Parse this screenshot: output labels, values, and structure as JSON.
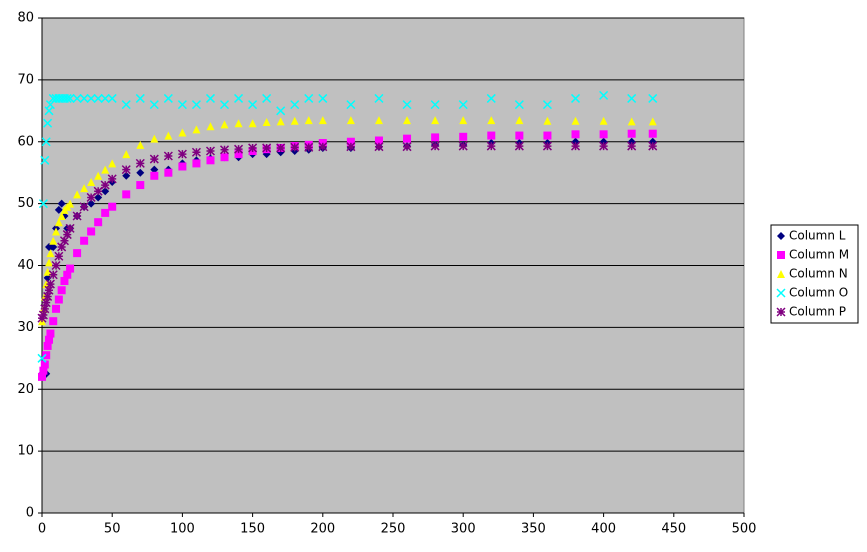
{
  "chart_data": {
    "type": "scatter",
    "x": [
      0,
      1,
      2,
      3,
      4,
      5,
      6,
      8,
      10,
      12,
      14,
      16,
      18,
      20,
      25,
      30,
      35,
      40,
      45,
      50,
      60,
      70,
      80,
      90,
      100,
      110,
      120,
      130,
      140,
      150,
      160,
      170,
      180,
      190,
      200,
      220,
      240,
      260,
      280,
      300,
      320,
      340,
      360,
      380,
      400,
      420,
      435
    ],
    "series": [
      {
        "name": "Column L",
        "color": "#000080",
        "marker": "diamond",
        "values": [
          22.5,
          22.5,
          22.5,
          22.5,
          38,
          43,
          43,
          43,
          46,
          49,
          50,
          48,
          46,
          46,
          48,
          49.5,
          50,
          51,
          52,
          53.5,
          54.5,
          55,
          55.5,
          55.5,
          56.5,
          57,
          57.3,
          57.5,
          57.5,
          58,
          58,
          58.3,
          58.5,
          58.7,
          59,
          59,
          59.2,
          59.3,
          59.5,
          59.5,
          59.8,
          59.8,
          59.8,
          60,
          60,
          60,
          60
        ]
      },
      {
        "name": "Column M",
        "color": "#ff00ff",
        "marker": "square",
        "values": [
          22,
          23,
          24,
          25.5,
          27,
          28,
          29,
          31,
          33,
          34.5,
          36,
          37.5,
          38.5,
          39.5,
          42,
          44,
          45.5,
          47,
          48.5,
          49.5,
          51.5,
          53,
          54.5,
          55,
          56,
          56.5,
          57,
          57.5,
          58,
          58.5,
          58.8,
          59,
          59.3,
          59.5,
          59.8,
          60,
          60.2,
          60.5,
          60.7,
          60.8,
          61,
          61,
          61,
          61.2,
          61.2,
          61.3,
          61.3
        ]
      },
      {
        "name": "Column N",
        "color": "#ffff00",
        "marker": "triangle",
        "values": [
          31,
          33,
          35,
          37,
          39,
          40.5,
          42,
          44,
          45.5,
          47,
          48,
          49,
          49.5,
          50,
          51.5,
          52.5,
          53.5,
          54.5,
          55.5,
          56.5,
          58,
          59.5,
          60.5,
          61,
          61.5,
          62,
          62.5,
          62.8,
          63,
          63,
          63.2,
          63.3,
          63.4,
          63.5,
          63.5,
          63.5,
          63.5,
          63.5,
          63.5,
          63.5,
          63.5,
          63.5,
          63.4,
          63.4,
          63.4,
          63.3,
          63.3
        ]
      },
      {
        "name": "Column O",
        "color": "#00ffff",
        "marker": "x",
        "values": [
          25,
          50,
          57,
          60,
          63,
          65,
          66,
          67,
          67,
          67,
          67,
          67,
          67,
          67,
          67,
          67,
          67,
          67,
          67,
          67,
          66,
          67,
          66,
          67,
          66,
          66,
          67,
          66,
          67,
          66,
          67,
          65,
          66,
          67,
          67,
          66,
          67,
          66,
          66,
          66,
          67,
          66,
          66,
          67,
          67.5,
          67,
          67
        ]
      },
      {
        "name": "Column P",
        "color": "#800080",
        "marker": "star",
        "values": [
          31.5,
          32,
          33,
          34,
          35,
          36,
          37,
          38.5,
          40,
          41.5,
          43,
          44,
          45,
          46,
          48,
          49.5,
          51,
          52,
          53,
          54,
          55.5,
          56.5,
          57.2,
          57.7,
          58,
          58.3,
          58.5,
          58.7,
          58.8,
          59,
          59,
          59,
          59.1,
          59.1,
          59.2,
          59.2,
          59.2,
          59.2,
          59.3,
          59.3,
          59.3,
          59.3,
          59.3,
          59.3,
          59.3,
          59.3,
          59.3
        ]
      }
    ],
    "xlim": [
      0,
      500
    ],
    "xticks": [
      0,
      50,
      100,
      150,
      200,
      250,
      300,
      350,
      400,
      450,
      500
    ],
    "ylim": [
      0,
      80
    ],
    "yticks": [
      0,
      10,
      20,
      30,
      40,
      50,
      60,
      70,
      80
    ],
    "grid": true,
    "legend": "right",
    "plot_background": "#c0c0c0"
  }
}
